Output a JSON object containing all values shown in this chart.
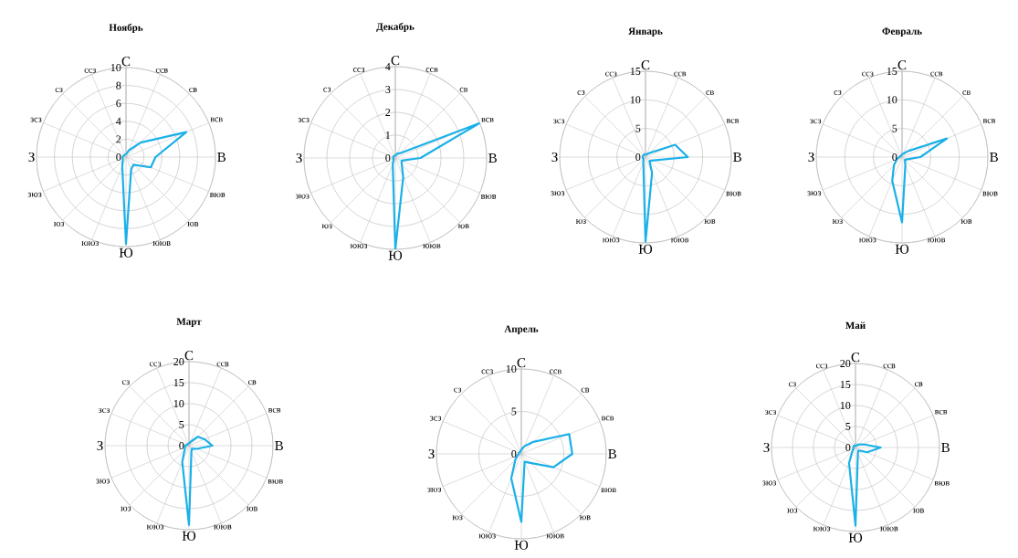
{
  "chart_data": [
    {
      "type": "radar",
      "title": "Ноябрь",
      "categories": [
        "С",
        "ссв",
        "св",
        "всв",
        "В",
        "вюв",
        "юв",
        "ююв",
        "Ю",
        "ююз",
        "юз",
        "зюз",
        "З",
        "зсз",
        "сз",
        "ссз"
      ],
      "ylim": [
        0,
        10
      ],
      "yticks": [
        0,
        2,
        4,
        6,
        8,
        10
      ],
      "grid": true,
      "series": [
        {
          "color": "#1ab0e8",
          "values": [
            0.3,
            0.8,
            2.3,
            7.3,
            3.3,
            3.0,
            1.2,
            1.5,
            9.7,
            1.1,
            0.5,
            0.4,
            0.4,
            0.3,
            0.3,
            0.3
          ]
        }
      ]
    },
    {
      "type": "radar",
      "title": "Декабрь",
      "categories": [
        "С",
        "ссв",
        "св",
        "всв",
        "В",
        "вюв",
        "юв",
        "ююв",
        "Ю",
        "ююз",
        "юз",
        "зюз",
        "З",
        "зсз",
        "сз",
        "ссз"
      ],
      "ylim": [
        0,
        4
      ],
      "yticks": [
        0,
        1,
        2,
        3,
        4
      ],
      "grid": true,
      "series": [
        {
          "color": "#1ab0e8",
          "values": [
            0.1,
            0.2,
            0.3,
            4.0,
            1.1,
            0.3,
            0.4,
            0.9,
            4.0,
            0.3,
            0.1,
            0.1,
            0.1,
            0.1,
            0.1,
            0.1
          ]
        }
      ]
    },
    {
      "type": "radar",
      "title": "Январь",
      "categories": [
        "С",
        "ссв",
        "св",
        "всв",
        "В",
        "вюв",
        "юв",
        "ююв",
        "Ю",
        "ююз",
        "юз",
        "зюз",
        "З",
        "зсз",
        "сз",
        "ссз"
      ],
      "ylim": [
        0,
        15
      ],
      "yticks": [
        0,
        5,
        10,
        15
      ],
      "grid": true,
      "series": [
        {
          "color": "#1ab0e8",
          "values": [
            0.5,
            0.5,
            1.0,
            5.6,
            7.4,
            1.5,
            1.0,
            3.0,
            14.8,
            1.0,
            0.5,
            0.5,
            0.5,
            0.5,
            0.5,
            0.5
          ]
        }
      ]
    },
    {
      "type": "radar",
      "title": "Февраль",
      "categories": [
        "С",
        "ссв",
        "св",
        "всв",
        "В",
        "вюв",
        "юв",
        "ююв",
        "Ю",
        "ююз",
        "юз",
        "зюз",
        "З",
        "зсз",
        "сз",
        "ссз"
      ],
      "ylim": [
        0,
        15
      ],
      "yticks": [
        0,
        5,
        10,
        15
      ],
      "grid": true,
      "series": [
        {
          "color": "#1ab0e8",
          "values": [
            0.5,
            0.7,
            1.5,
            8.5,
            3.2,
            1.0,
            0.7,
            1.5,
            11.4,
            4.5,
            2.0,
            1.0,
            0.5,
            0.3,
            0.3,
            0.3
          ]
        }
      ]
    },
    {
      "type": "radar",
      "title": "Март",
      "categories": [
        "С",
        "ссв",
        "св",
        "всв",
        "В",
        "вюв",
        "юв",
        "ююв",
        "Ю",
        "ююз",
        "юз",
        "зюз",
        "З",
        "зсз",
        "сз",
        "ссз"
      ],
      "ylim": [
        0,
        20
      ],
      "yticks": [
        0,
        5,
        10,
        15,
        20
      ],
      "grid": true,
      "series": [
        {
          "color": "#1ab0e8",
          "values": [
            0.5,
            1.0,
            3.0,
            4.0,
            5.6,
            2.0,
            1.0,
            1.5,
            18.9,
            4.2,
            1.5,
            1.0,
            1.0,
            0.5,
            0.5,
            0.5
          ]
        }
      ]
    },
    {
      "type": "radar",
      "title": "Апрель",
      "categories": [
        "С",
        "ссв",
        "св",
        "всв",
        "В",
        "вюв",
        "юв",
        "ююв",
        "Ю",
        "ююз",
        "юз",
        "зюз",
        "З",
        "зсз",
        "сз",
        "ссз"
      ],
      "ylim": [
        0,
        10
      ],
      "yticks": [
        0,
        5,
        10
      ],
      "grid": true,
      "series": [
        {
          "color": "#1ab0e8",
          "values": [
            0.5,
            1.0,
            2.0,
            6.1,
            6.0,
            4.1,
            1.5,
            1.0,
            8.0,
            3.1,
            1.0,
            0.5,
            0.3,
            0.3,
            0.3,
            0.3
          ]
        }
      ]
    },
    {
      "type": "radar",
      "title": "Май",
      "categories": [
        "С",
        "ссв",
        "св",
        "всв",
        "В",
        "вюв",
        "юв",
        "ююв",
        "Ю",
        "ююз",
        "юз",
        "зюз",
        "З",
        "зсз",
        "сз",
        "ссз"
      ],
      "ylim": [
        0,
        20
      ],
      "yticks": [
        0,
        5,
        10,
        15,
        20
      ],
      "grid": true,
      "series": [
        {
          "color": "#1ab0e8",
          "values": [
            0.5,
            0.5,
            1.0,
            2.0,
            6.0,
            3.0,
            1.0,
            1.5,
            18.6,
            4.0,
            1.0,
            0.5,
            0.5,
            0.5,
            0.5,
            0.5
          ]
        }
      ]
    }
  ]
}
